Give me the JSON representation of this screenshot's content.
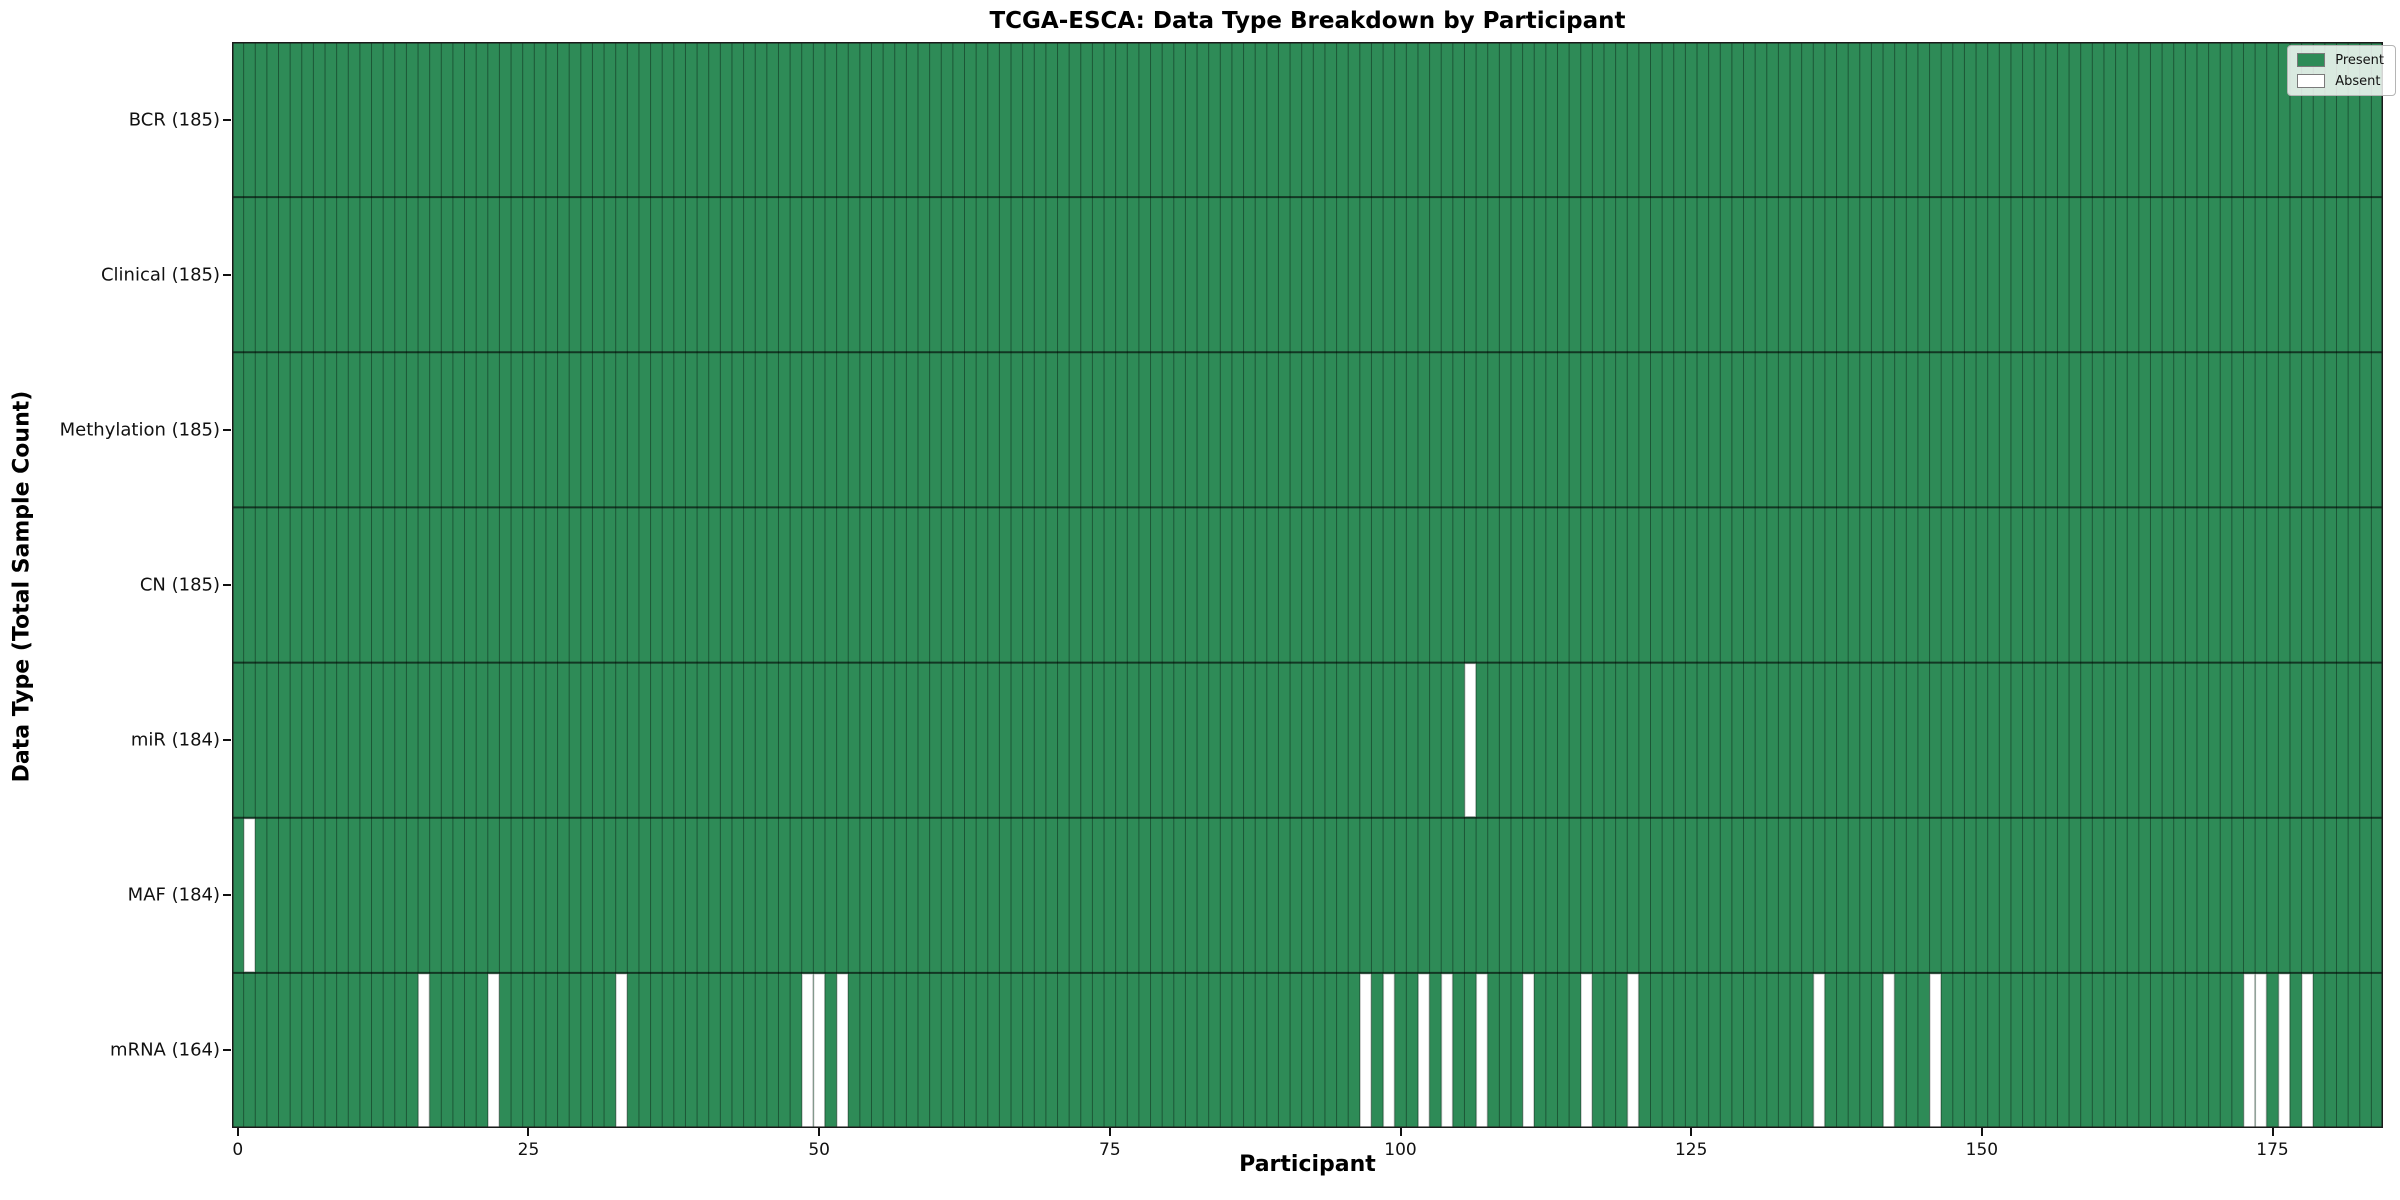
{
  "chart_data": {
    "type": "heatmap",
    "title": "TCGA-ESCA: Data Type Breakdown by Participant",
    "xlabel": "Participant",
    "ylabel": "Data Type (Total Sample Count)",
    "x_ticks": [
      0,
      25,
      50,
      75,
      100,
      125,
      150,
      175
    ],
    "x_range": [
      0,
      184
    ],
    "n_columns": 185,
    "grid": true,
    "legend": {
      "position": "upper right",
      "entries": [
        {
          "label": "Present",
          "color": "#2e8b57"
        },
        {
          "label": "Absent",
          "color": "#ffffff"
        }
      ]
    },
    "rows": [
      {
        "label": "BCR (185)",
        "data_type": "BCR",
        "present_count": 185,
        "absent_participants": []
      },
      {
        "label": "Clinical (185)",
        "data_type": "Clinical",
        "present_count": 185,
        "absent_participants": []
      },
      {
        "label": "Methylation (185)",
        "data_type": "Methylation",
        "present_count": 185,
        "absent_participants": []
      },
      {
        "label": "CN (185)",
        "data_type": "CN",
        "present_count": 185,
        "absent_participants": []
      },
      {
        "label": "miR (184)",
        "data_type": "miR",
        "present_count": 184,
        "absent_participants": [
          106
        ]
      },
      {
        "label": "MAF (184)",
        "data_type": "MAF",
        "present_count": 184,
        "absent_participants": [
          1
        ]
      },
      {
        "label": "mRNA (164)",
        "data_type": "mRNA",
        "present_count": 164,
        "absent_participants": [
          16,
          22,
          33,
          49,
          50,
          52,
          97,
          99,
          102,
          104,
          107,
          111,
          116,
          120,
          136,
          142,
          146,
          173,
          174,
          176,
          178
        ]
      }
    ],
    "colors": {
      "present": "#2e8b57",
      "absent": "#ffffff",
      "cell_border": "rgba(0,0,0,0.38)",
      "absent_border": "#c4c4c4",
      "row_separator": "rgba(0,0,0,0.6)",
      "spine": "#1a1a1a",
      "background": "#ffffff",
      "text": "#000000"
    }
  }
}
